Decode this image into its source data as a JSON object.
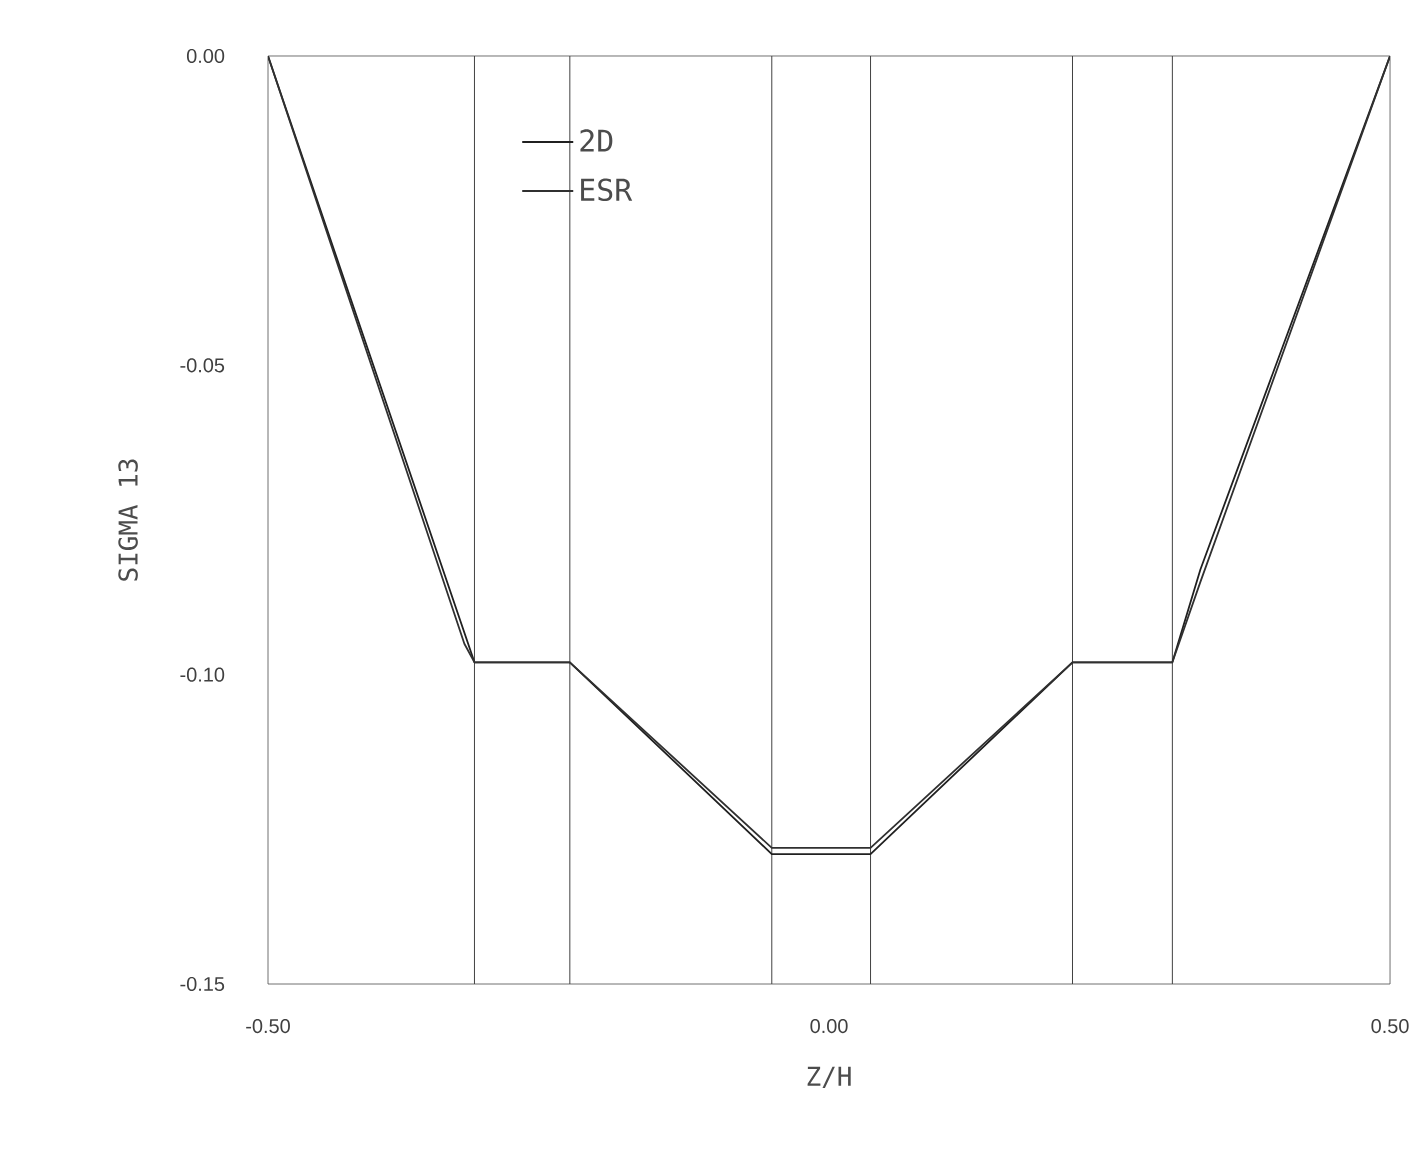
{
  "chart_data": {
    "type": "line",
    "xlabel": "Z/H",
    "ylabel": "SIGMA 13",
    "xlim": [
      -0.5,
      0.5
    ],
    "ylim": [
      -0.15,
      0.0
    ],
    "xticks": [
      {
        "value": -0.5,
        "label": "-0.50"
      },
      {
        "value": 0.0,
        "label": "0.00"
      },
      {
        "value": 0.5,
        "label": "0.50"
      }
    ],
    "yticks": [
      {
        "value": -0.15,
        "label": "-0.15"
      },
      {
        "value": -0.1,
        "label": "-0.10"
      },
      {
        "value": -0.05,
        "label": "-0.05"
      },
      {
        "value": 0.0,
        "label": "0.00"
      }
    ],
    "series": [
      {
        "name": "2D",
        "color": "#202020",
        "x": [
          -0.5,
          -0.316,
          -0.231,
          -0.051,
          0.037,
          0.217,
          0.306,
          0.331,
          0.5
        ],
        "values": [
          0.0,
          -0.098,
          -0.098,
          -0.129,
          -0.129,
          -0.098,
          -0.098,
          -0.083,
          0.0
        ]
      },
      {
        "name": "ESR",
        "color": "#303030",
        "x": [
          -0.5,
          -0.325,
          -0.316,
          -0.231,
          -0.051,
          0.037,
          0.217,
          0.306,
          0.331,
          0.5
        ],
        "values": [
          0.0,
          -0.095,
          -0.098,
          -0.098,
          -0.128,
          -0.128,
          -0.098,
          -0.098,
          -0.085,
          0.0
        ]
      }
    ],
    "ref_lines": [
      {
        "axis": "x",
        "value": -0.316,
        "color": "#404040"
      },
      {
        "axis": "x",
        "value": -0.231,
        "color": "#404040"
      },
      {
        "axis": "x",
        "value": -0.051,
        "color": "#404040"
      },
      {
        "axis": "x",
        "value": 0.037,
        "color": "#404040"
      },
      {
        "axis": "x",
        "value": 0.217,
        "color": "#404040"
      },
      {
        "axis": "x",
        "value": 0.306,
        "color": "#404040"
      }
    ],
    "legend": "top left",
    "grid": false,
    "marker": "none",
    "line_style": "solid"
  }
}
